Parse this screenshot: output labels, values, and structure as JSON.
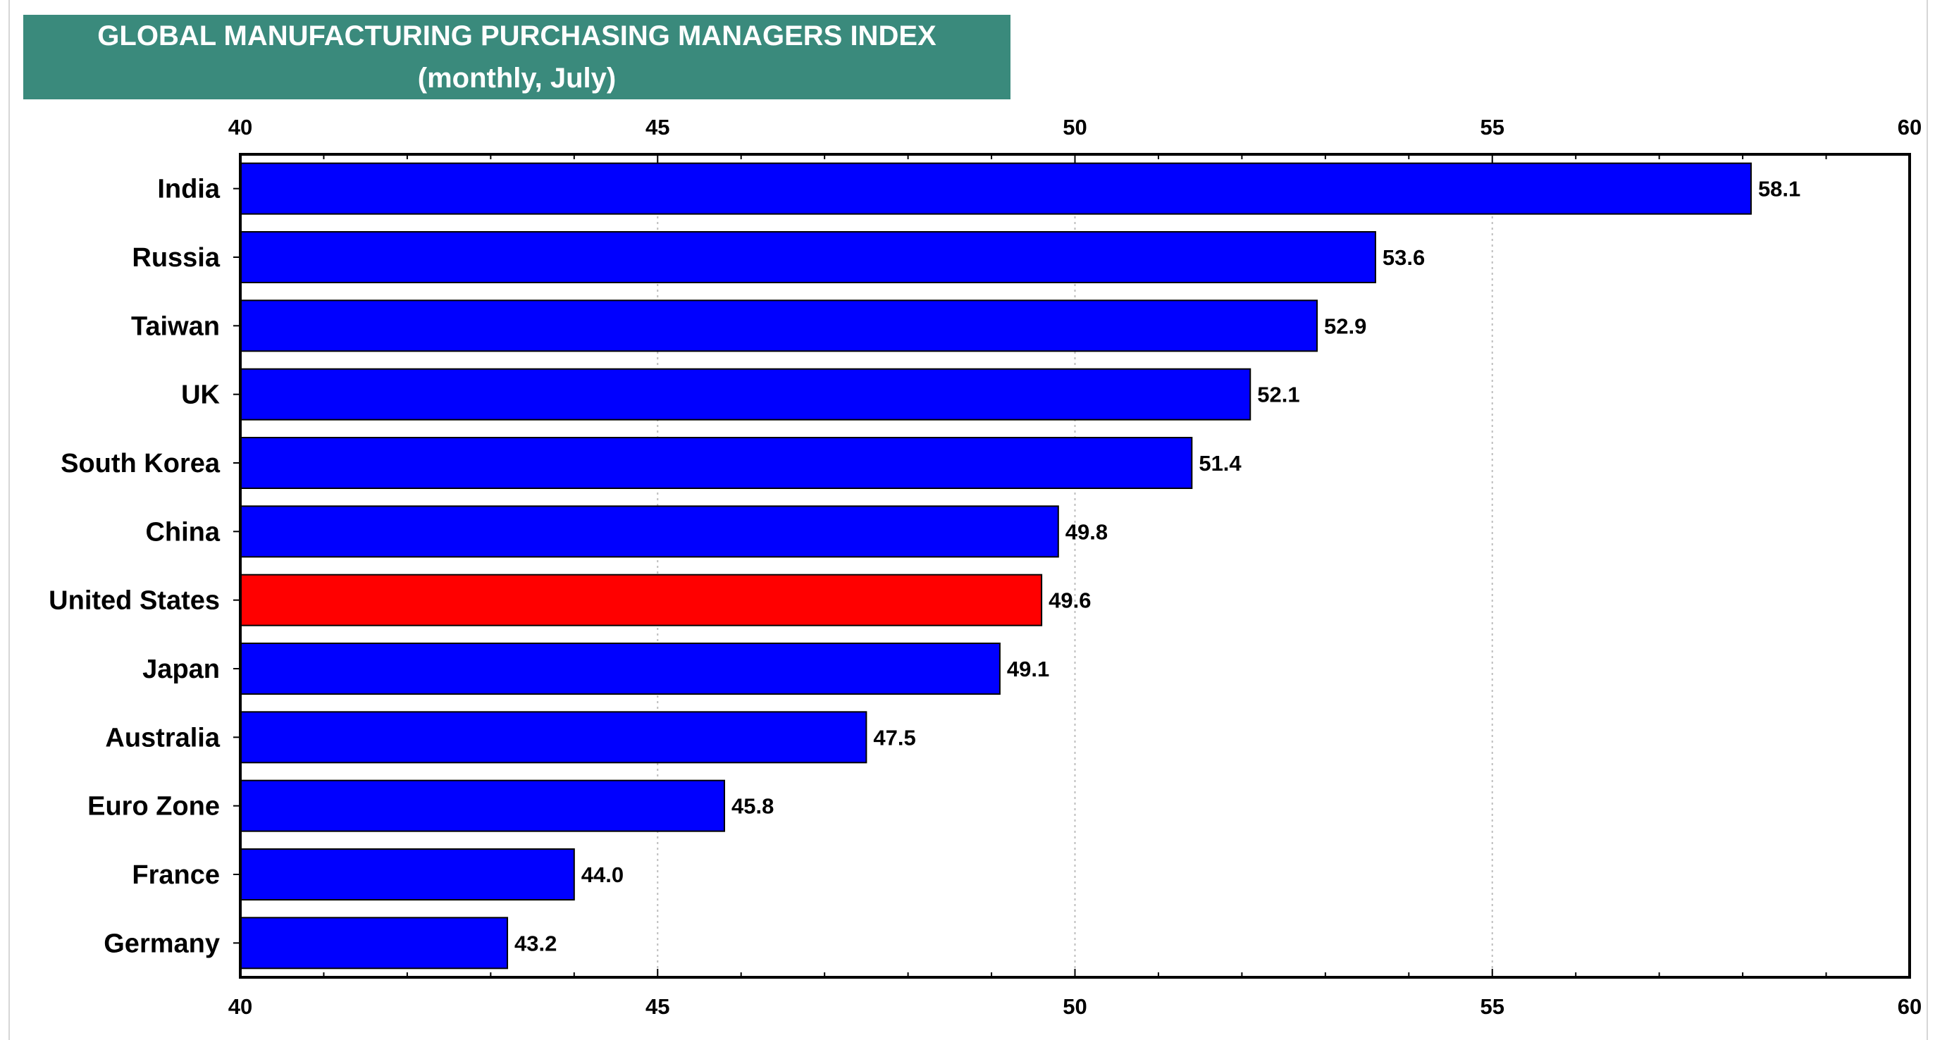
{
  "chart_data": {
    "type": "bar",
    "orientation": "horizontal",
    "title": "GLOBAL MANUFACTURING PURCHASING MANAGERS INDEX",
    "subtitle": "(monthly, July)",
    "categories": [
      "India",
      "Russia",
      "Taiwan",
      "UK",
      "South Korea",
      "China",
      "United States",
      "Japan",
      "Australia",
      "Euro Zone",
      "France",
      "Germany"
    ],
    "values": [
      58.1,
      53.6,
      52.9,
      52.1,
      51.4,
      49.8,
      49.6,
      49.1,
      47.5,
      45.8,
      44.0,
      43.2
    ],
    "value_labels": [
      "58.1",
      "53.6",
      "52.9",
      "52.1",
      "51.4",
      "49.8",
      "49.6",
      "49.1",
      "47.5",
      "45.8",
      "44.0",
      "43.2"
    ],
    "xlim": [
      40,
      60
    ],
    "x_ticks": [
      40,
      45,
      50,
      55,
      60
    ],
    "x_tick_labels": [
      "40",
      "45",
      "50",
      "55",
      "60"
    ],
    "grid": true,
    "bar_color": "#0000ff",
    "highlight_category": "United States",
    "highlight_color": "#ff0000",
    "title_background": "#3a8a7c"
  }
}
